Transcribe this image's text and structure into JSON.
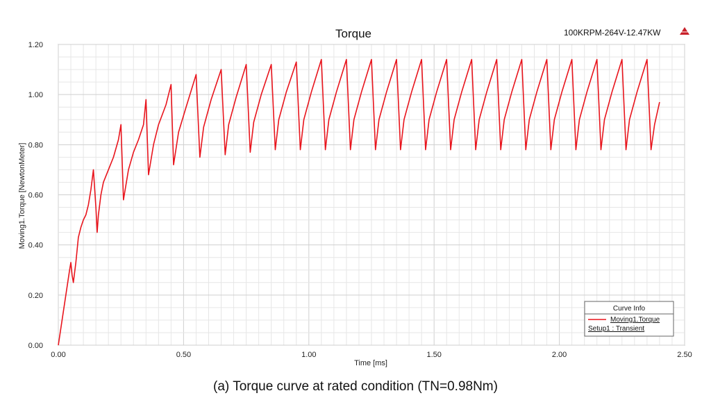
{
  "caption": "(a) Torque curve at rated condition (TN=0.98Nm)",
  "chart_data": {
    "type": "line",
    "title": "Torque",
    "design_label": "100KRPM-264V-12.47KW",
    "logo_text": "ANSOFT",
    "xlabel": "Time [ms]",
    "ylabel": "Moving1.Torque [NewtonMeter]",
    "xlim": [
      0,
      2.5
    ],
    "ylim": [
      0,
      1.2
    ],
    "x_ticks": [
      "0.00",
      "0.50",
      "1.00",
      "1.50",
      "2.00",
      "2.50"
    ],
    "y_ticks": [
      "0.00",
      "0.20",
      "0.40",
      "0.60",
      "0.80",
      "1.00",
      "1.20"
    ],
    "grid": true,
    "legend": {
      "title": "Curve Info",
      "position": "bottom-right",
      "entries": [
        "Moving1.Torque",
        "Setup1 : Transient"
      ]
    },
    "series": [
      {
        "name": "Moving1.Torque",
        "color": "#e8141c",
        "x": [
          0,
          0.015,
          0.03,
          0.045,
          0.05,
          0.055,
          0.06,
          0.07,
          0.08,
          0.09,
          0.1,
          0.11,
          0.12,
          0.13,
          0.14,
          0.15,
          0.155,
          0.16,
          0.17,
          0.18,
          0.2,
          0.22,
          0.24,
          0.25,
          0.26,
          0.28,
          0.3,
          0.32,
          0.34,
          0.35,
          0.36,
          0.38,
          0.4,
          0.43,
          0.45,
          0.46,
          0.48,
          0.51,
          0.55,
          0.565,
          0.58,
          0.61,
          0.65,
          0.666,
          0.68,
          0.71,
          0.75,
          0.766,
          0.78,
          0.81,
          0.85,
          0.866,
          0.88,
          0.91,
          0.95,
          0.966,
          0.98,
          1.01,
          1.05,
          1.066,
          1.08,
          1.11,
          1.15,
          1.166,
          1.18,
          1.21,
          1.25,
          1.266,
          1.28,
          1.31,
          1.35,
          1.366,
          1.38,
          1.41,
          1.45,
          1.466,
          1.48,
          1.51,
          1.55,
          1.566,
          1.58,
          1.61,
          1.65,
          1.666,
          1.68,
          1.71,
          1.75,
          1.766,
          1.78,
          1.81,
          1.85,
          1.866,
          1.88,
          1.91,
          1.95,
          1.966,
          1.98,
          2.01,
          2.05,
          2.066,
          2.08,
          2.11,
          2.15,
          2.166,
          2.18,
          2.21,
          2.25,
          2.266,
          2.28,
          2.31,
          2.35,
          2.366,
          2.38,
          2.4
        ],
        "y": [
          0,
          0.1,
          0.2,
          0.3,
          0.33,
          0.28,
          0.25,
          0.33,
          0.43,
          0.47,
          0.5,
          0.52,
          0.56,
          0.62,
          0.7,
          0.55,
          0.45,
          0.52,
          0.6,
          0.65,
          0.7,
          0.75,
          0.82,
          0.88,
          0.58,
          0.7,
          0.77,
          0.82,
          0.88,
          0.98,
          0.68,
          0.8,
          0.88,
          0.96,
          1.04,
          0.72,
          0.85,
          0.95,
          1.08,
          0.75,
          0.87,
          0.98,
          1.1,
          0.76,
          0.88,
          0.99,
          1.12,
          0.77,
          0.89,
          1.0,
          1.12,
          0.78,
          0.9,
          1.01,
          1.13,
          0.78,
          0.9,
          1.01,
          1.14,
          0.78,
          0.9,
          1.01,
          1.14,
          0.78,
          0.9,
          1.01,
          1.14,
          0.78,
          0.9,
          1.01,
          1.14,
          0.78,
          0.9,
          1.01,
          1.14,
          0.78,
          0.9,
          1.01,
          1.14,
          0.78,
          0.9,
          1.01,
          1.14,
          0.78,
          0.9,
          1.01,
          1.14,
          0.78,
          0.9,
          1.01,
          1.14,
          0.78,
          0.9,
          1.01,
          1.14,
          0.78,
          0.9,
          1.01,
          1.14,
          0.78,
          0.9,
          1.01,
          1.14,
          0.78,
          0.9,
          1.01,
          1.14,
          0.78,
          0.9,
          1.01,
          1.14,
          0.78,
          0.88,
          0.97
        ]
      }
    ]
  }
}
